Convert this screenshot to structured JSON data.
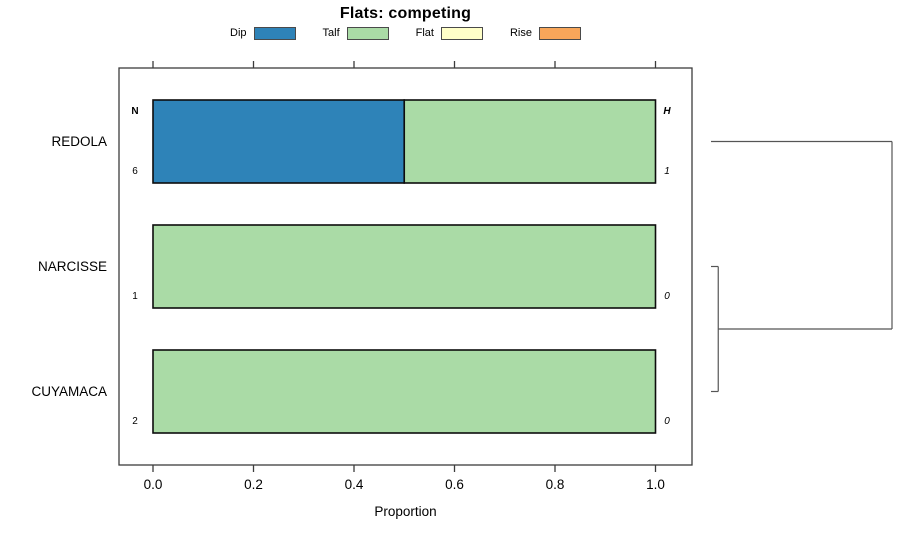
{
  "title": "Flats: competing",
  "chart_data": {
    "type": "bar",
    "orientation": "horizontal-stacked",
    "title": "Flats: competing",
    "xlabel": "Proportion",
    "xlim": [
      0,
      1
    ],
    "x_ticks": [
      "0.0",
      "0.2",
      "0.4",
      "0.6",
      "0.8",
      "1.0"
    ],
    "x_tick_values": [
      0.0,
      0.2,
      0.4,
      0.6,
      0.8,
      1.0
    ],
    "grid": false,
    "legend_position": "top",
    "categories": [
      "REDOLA",
      "NARCISSE",
      "CUYAMACA"
    ],
    "legend": [
      {
        "label": "Dip",
        "color": "#2E83B8"
      },
      {
        "label": "Talf",
        "color": "#AADBA6"
      },
      {
        "label": "Flat",
        "color": "#FFFFC8"
      },
      {
        "label": "Rise",
        "color": "#F8A65A"
      }
    ],
    "series": [
      {
        "name": "Dip",
        "color": "#2E83B8",
        "values": [
          0.5,
          0,
          0
        ]
      },
      {
        "name": "Talf",
        "color": "#AADBA6",
        "values": [
          0.5,
          1,
          1
        ]
      },
      {
        "name": "Flat",
        "color": "#FFFFC8",
        "values": [
          0,
          0,
          0
        ]
      },
      {
        "name": "Rise",
        "color": "#F8A65A",
        "values": [
          0,
          0,
          0
        ]
      }
    ],
    "left_column": {
      "header": "N",
      "values": [
        "6",
        "1",
        "2"
      ]
    },
    "right_column": {
      "header": "H",
      "values": [
        "1",
        "0",
        "0"
      ]
    },
    "dendrogram": {
      "leaf_order": [
        "REDOLA",
        "NARCISSE",
        "CUYAMACA"
      ],
      "merges": [
        {
          "members": [
            "NARCISSE",
            "CUYAMACA"
          ],
          "height": 0.04
        },
        {
          "members": [
            "REDOLA",
            "NARCISSE+CUYAMACA"
          ],
          "height": 1.0
        }
      ],
      "line_color": "#555555"
    },
    "colors": {
      "bar_border": "#0d0d0d",
      "axis_box": "#3c3c3c"
    }
  }
}
